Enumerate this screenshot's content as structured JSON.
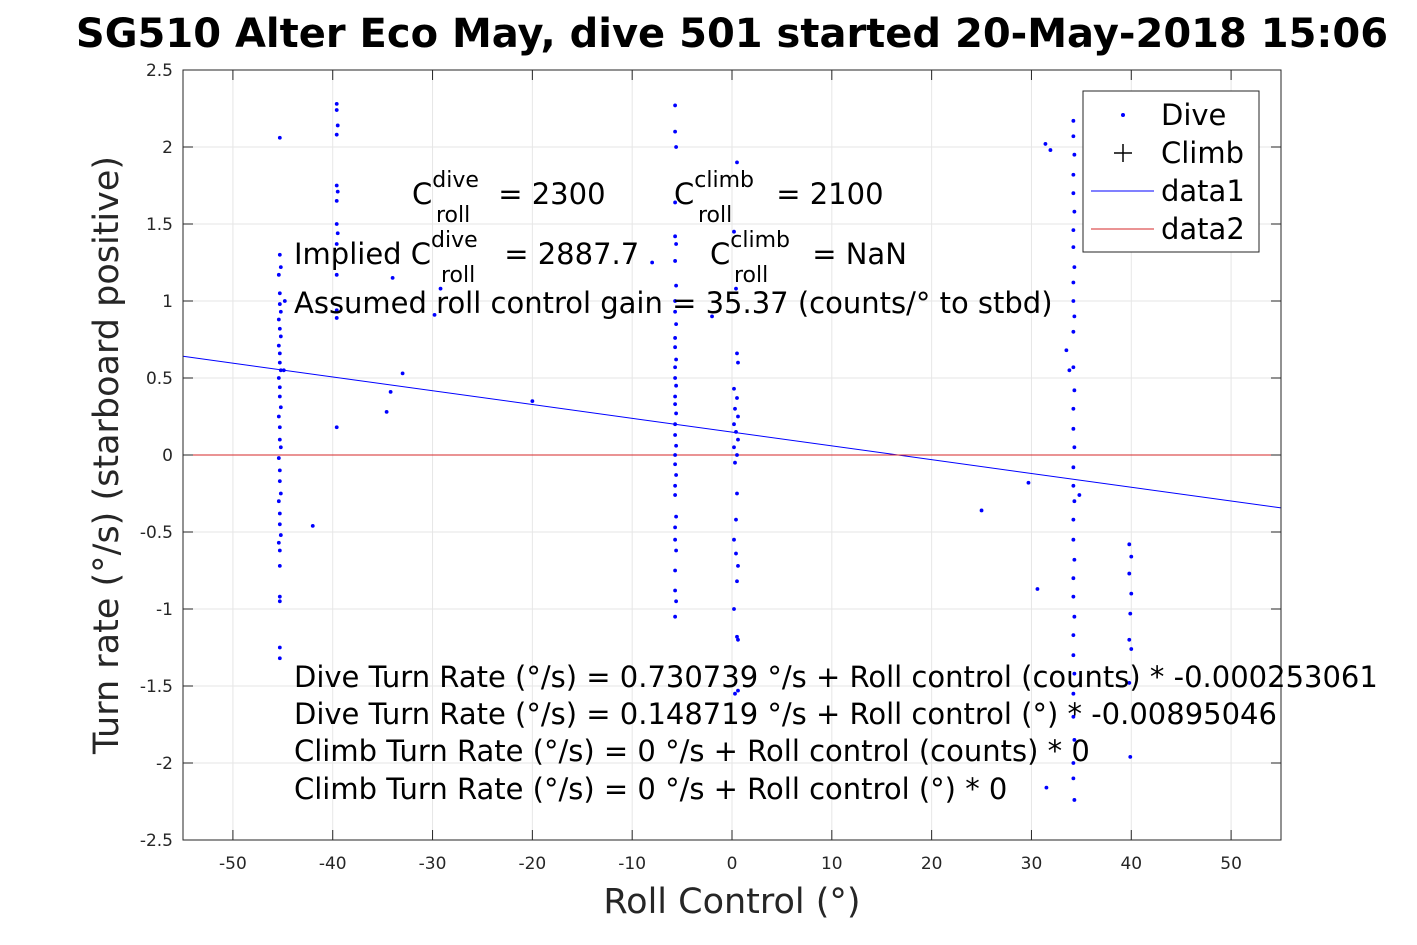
{
  "chart_data": {
    "type": "scatter",
    "title": "SG510 Alter Eco May, dive 501 started 20-May-2018 15:06",
    "xlabel": "Roll Control (°)",
    "ylabel": "Turn rate (°/s) (starboard positive)",
    "xlim": [
      -55,
      55
    ],
    "ylim": [
      -2.5,
      2.5
    ],
    "xticks": [
      -50,
      -40,
      -30,
      -20,
      -10,
      0,
      10,
      20,
      30,
      40,
      50
    ],
    "xtick_labels": [
      "-50",
      "-40",
      "-30",
      "-20",
      "-10",
      "0",
      "10",
      "20",
      "30",
      "40",
      "50"
    ],
    "yticks": [
      -2.5,
      -2,
      -1.5,
      -1,
      -0.5,
      0,
      0.5,
      1,
      1.5,
      2,
      2.5
    ],
    "ytick_labels": [
      "-2.5",
      "-2",
      "-1.5",
      "-1",
      "-0.5",
      "0",
      "0.5",
      "1",
      "1.5",
      "2",
      "2.5"
    ],
    "grid": true,
    "legend_position": "top-right",
    "series": [
      {
        "name": "Dive",
        "marker": "dot",
        "color": "#0000ff",
        "points": [
          [
            -45.3,
            2.06
          ],
          [
            -45.3,
            1.3
          ],
          [
            -45.2,
            1.22
          ],
          [
            -45.4,
            1.17
          ],
          [
            -45.3,
            1.05
          ],
          [
            -45.3,
            0.98
          ],
          [
            -45.2,
            0.93
          ],
          [
            -45.4,
            0.88
          ],
          [
            -45.3,
            0.82
          ],
          [
            -45.2,
            0.77
          ],
          [
            -45.4,
            0.71
          ],
          [
            -45.3,
            0.66
          ],
          [
            -45.3,
            0.6
          ],
          [
            -45.2,
            0.55
          ],
          [
            -45.4,
            0.5
          ],
          [
            -45.3,
            0.44
          ],
          [
            -45.3,
            0.38
          ],
          [
            -45.2,
            0.31
          ],
          [
            -45.4,
            0.25
          ],
          [
            -45.3,
            0.18
          ],
          [
            -45.3,
            0.1
          ],
          [
            -45.2,
            0.05
          ],
          [
            -45.4,
            -0.02
          ],
          [
            -45.3,
            -0.1
          ],
          [
            -45.3,
            -0.17
          ],
          [
            -45.2,
            -0.25
          ],
          [
            -45.4,
            -0.3
          ],
          [
            -45.3,
            -0.38
          ],
          [
            -45.3,
            -0.45
          ],
          [
            -45.2,
            -0.52
          ],
          [
            -45.4,
            -0.57
          ],
          [
            -45.3,
            -0.62
          ],
          [
            -45.3,
            -0.72
          ],
          [
            -45.3,
            -0.92
          ],
          [
            -45.3,
            -0.95
          ],
          [
            -45.3,
            -1.25
          ],
          [
            -45.3,
            -1.32
          ],
          [
            -44.8,
            1.0
          ],
          [
            -44.9,
            0.55
          ],
          [
            -42.0,
            -0.46
          ],
          [
            -39.6,
            2.28
          ],
          [
            -39.6,
            2.24
          ],
          [
            -39.5,
            2.14
          ],
          [
            -39.6,
            2.08
          ],
          [
            -39.6,
            1.75
          ],
          [
            -39.5,
            1.71
          ],
          [
            -39.6,
            1.65
          ],
          [
            -39.6,
            1.5
          ],
          [
            -39.5,
            1.44
          ],
          [
            -39.6,
            1.37
          ],
          [
            -39.6,
            1.17
          ],
          [
            -39.6,
            0.94
          ],
          [
            -39.6,
            0.89
          ],
          [
            -39.6,
            0.18
          ],
          [
            -34.0,
            1.15
          ],
          [
            -34.2,
            0.41
          ],
          [
            -34.6,
            0.28
          ],
          [
            -33.0,
            0.53
          ],
          [
            -29.2,
            1.08
          ],
          [
            -29.8,
            0.91
          ],
          [
            -20.0,
            0.35
          ],
          [
            -8.0,
            1.25
          ],
          [
            -5.7,
            2.27
          ],
          [
            -5.7,
            2.1
          ],
          [
            -5.6,
            2.0
          ],
          [
            -5.7,
            1.64
          ],
          [
            -5.7,
            1.42
          ],
          [
            -5.6,
            1.37
          ],
          [
            -5.7,
            1.26
          ],
          [
            -5.6,
            1.1
          ],
          [
            -5.7,
            1.0
          ],
          [
            -5.7,
            0.93
          ],
          [
            -5.6,
            0.85
          ],
          [
            -5.7,
            0.76
          ],
          [
            -5.7,
            0.7
          ],
          [
            -5.6,
            0.62
          ],
          [
            -5.7,
            0.57
          ],
          [
            -5.7,
            0.5
          ],
          [
            -5.6,
            0.45
          ],
          [
            -5.7,
            0.38
          ],
          [
            -5.7,
            0.33
          ],
          [
            -5.6,
            0.27
          ],
          [
            -5.7,
            0.2
          ],
          [
            -5.7,
            0.13
          ],
          [
            -5.6,
            0.06
          ],
          [
            -5.7,
            0.0
          ],
          [
            -5.7,
            -0.06
          ],
          [
            -5.6,
            -0.13
          ],
          [
            -5.7,
            -0.2
          ],
          [
            -5.7,
            -0.26
          ],
          [
            -5.6,
            -0.4
          ],
          [
            -5.7,
            -0.47
          ],
          [
            -5.7,
            -0.55
          ],
          [
            -5.6,
            -0.62
          ],
          [
            -5.7,
            -0.75
          ],
          [
            -5.7,
            -0.88
          ],
          [
            -5.6,
            -0.95
          ],
          [
            -5.7,
            -1.05
          ],
          [
            -2.0,
            0.9
          ],
          [
            0.5,
            1.9
          ],
          [
            0.2,
            1.45
          ],
          [
            0.4,
            1.08
          ],
          [
            0.5,
            0.66
          ],
          [
            0.6,
            0.6
          ],
          [
            0.2,
            0.43
          ],
          [
            0.5,
            0.37
          ],
          [
            0.3,
            0.3
          ],
          [
            0.6,
            0.25
          ],
          [
            0.2,
            0.2
          ],
          [
            0.4,
            0.15
          ],
          [
            0.6,
            0.1
          ],
          [
            0.2,
            0.05
          ],
          [
            0.5,
            0.0
          ],
          [
            0.3,
            -0.05
          ],
          [
            0.5,
            -0.25
          ],
          [
            0.4,
            -0.42
          ],
          [
            0.2,
            -0.55
          ],
          [
            0.4,
            -0.64
          ],
          [
            0.6,
            -0.72
          ],
          [
            0.5,
            -0.82
          ],
          [
            0.2,
            -1.0
          ],
          [
            0.5,
            -1.18
          ],
          [
            0.6,
            -1.2
          ],
          [
            0.3,
            -1.55
          ],
          [
            0.6,
            -1.53
          ],
          [
            25.0,
            -0.36
          ],
          [
            29.7,
            -0.18
          ],
          [
            30.6,
            -0.87
          ],
          [
            31.4,
            2.02
          ],
          [
            31.9,
            1.98
          ],
          [
            31.5,
            -2.16
          ],
          [
            34.2,
            2.17
          ],
          [
            34.2,
            2.07
          ],
          [
            34.3,
            1.95
          ],
          [
            34.2,
            1.82
          ],
          [
            34.2,
            1.7
          ],
          [
            34.3,
            1.58
          ],
          [
            34.2,
            1.46
          ],
          [
            34.2,
            1.35
          ],
          [
            34.3,
            1.22
          ],
          [
            34.2,
            1.12
          ],
          [
            34.2,
            1.0
          ],
          [
            34.3,
            0.9
          ],
          [
            34.2,
            0.8
          ],
          [
            34.2,
            0.57
          ],
          [
            34.3,
            0.42
          ],
          [
            34.2,
            0.3
          ],
          [
            34.2,
            0.17
          ],
          [
            34.3,
            0.05
          ],
          [
            34.2,
            -0.08
          ],
          [
            34.2,
            -0.2
          ],
          [
            34.3,
            -0.3
          ],
          [
            34.2,
            -0.42
          ],
          [
            34.2,
            -0.55
          ],
          [
            34.3,
            -0.68
          ],
          [
            34.2,
            -0.8
          ],
          [
            34.2,
            -0.92
          ],
          [
            34.3,
            -1.05
          ],
          [
            34.2,
            -1.17
          ],
          [
            34.2,
            -1.3
          ],
          [
            34.3,
            -1.42
          ],
          [
            34.2,
            -1.55
          ],
          [
            34.2,
            -1.7
          ],
          [
            34.3,
            -1.85
          ],
          [
            34.2,
            -2.0
          ],
          [
            34.2,
            -2.1
          ],
          [
            34.3,
            -2.24
          ],
          [
            33.5,
            0.68
          ],
          [
            33.8,
            0.55
          ],
          [
            34.8,
            -0.26
          ],
          [
            39.8,
            -0.58
          ],
          [
            40.0,
            -0.66
          ],
          [
            39.8,
            -0.77
          ],
          [
            40.0,
            -0.9
          ],
          [
            39.9,
            -1.03
          ],
          [
            39.8,
            -1.2
          ],
          [
            40.0,
            -1.26
          ],
          [
            39.8,
            -1.48
          ],
          [
            39.9,
            -1.96
          ]
        ]
      },
      {
        "name": "Climb",
        "marker": "plus",
        "color": "#000000",
        "points": []
      },
      {
        "name": "data1",
        "type": "line",
        "color": "#0000ff",
        "points": [
          [
            -55,
            0.641
          ],
          [
            55,
            -0.3436
          ]
        ]
      },
      {
        "name": "data2",
        "type": "line",
        "color": "#d62728",
        "points": [
          [
            -55,
            0
          ],
          [
            55,
            0
          ]
        ]
      }
    ],
    "annotations": {
      "c_roll_dive": {
        "prefix": "C",
        "sup": "dive",
        "sub": "roll",
        "suffix": " = 2300"
      },
      "c_roll_climb": {
        "prefix": "C",
        "sup": "climb",
        "sub": "roll",
        "suffix": " = 2100"
      },
      "implied_dive": {
        "prefix": "Implied C",
        "sup": "dive",
        "sub": "roll",
        "suffix": " = 2887.7"
      },
      "implied_climb": {
        "prefix": "C",
        "sup": "climb",
        "sub": "roll",
        "suffix": " = NaN"
      },
      "gain_line": "Assumed roll control gain = 35.37 (counts/° to stbd)",
      "eq_lines": [
        "Dive Turn Rate (°/s) = 0.730739 °/s + Roll control (counts) * -0.000253061",
        "Dive Turn Rate (°/s) = 0.148719 °/s + Roll control (°) * -0.00895046",
        "Climb Turn Rate (°/s) = 0 °/s + Roll control (counts) * 0",
        "Climb Turn Rate (°/s) = 0 °/s + Roll control (°) * 0"
      ]
    }
  }
}
